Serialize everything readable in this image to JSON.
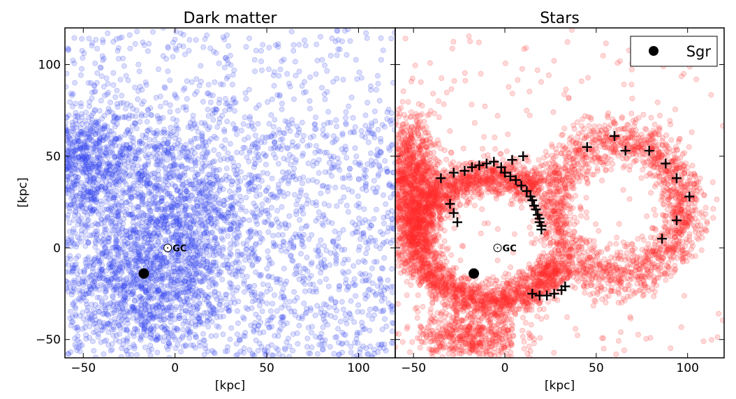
{
  "chart_data": [
    {
      "type": "scatter",
      "title": "Dark matter",
      "xlabel": "[kpc]",
      "ylabel": "[kpc]",
      "xlim": [
        -60,
        120
      ],
      "ylim": [
        -60,
        120
      ],
      "xticks": [
        -50,
        0,
        50,
        100
      ],
      "yticks": [
        -50,
        0,
        50,
        100
      ],
      "xtick_labels": [
        "−50",
        "0",
        "50",
        "100"
      ],
      "ytick_labels": [
        "−50",
        "0",
        "50",
        "100"
      ],
      "grid": false,
      "point_color": "#3344ee",
      "gc": {
        "x": -4,
        "y": 0,
        "label": "GC"
      },
      "sgr": {
        "x": -17,
        "y": -14
      },
      "points": []
    },
    {
      "type": "scatter",
      "title": "Stars",
      "xlabel": "[kpc]",
      "xlim": [
        -60,
        120
      ],
      "ylim": [
        -60,
        120
      ],
      "xticks": [
        -50,
        0,
        50,
        100
      ],
      "xtick_labels": [
        "−50",
        "0",
        "50",
        "100"
      ],
      "grid": false,
      "point_color": "#ff2a2a",
      "legend": {
        "position": "top-right",
        "entries": [
          {
            "label": "Sgr",
            "marker": "filled-circle",
            "color": "#000000"
          }
        ]
      },
      "gc": {
        "x": -4,
        "y": 0,
        "label": "GC"
      },
      "sgr": {
        "x": -17,
        "y": -14
      },
      "plus_markers": [
        {
          "x": -35,
          "y": 38
        },
        {
          "x": -28,
          "y": 41
        },
        {
          "x": -22,
          "y": 42
        },
        {
          "x": -18,
          "y": 44
        },
        {
          "x": -14,
          "y": 45
        },
        {
          "x": -10,
          "y": 46
        },
        {
          "x": -6,
          "y": 47
        },
        {
          "x": -2,
          "y": 44
        },
        {
          "x": 0,
          "y": 41
        },
        {
          "x": 3,
          "y": 39
        },
        {
          "x": 6,
          "y": 37
        },
        {
          "x": 9,
          "y": 34
        },
        {
          "x": 12,
          "y": 31
        },
        {
          "x": 14,
          "y": 28
        },
        {
          "x": 15,
          "y": 26
        },
        {
          "x": 16,
          "y": 23
        },
        {
          "x": 17,
          "y": 21
        },
        {
          "x": 18,
          "y": 18
        },
        {
          "x": 19,
          "y": 16
        },
        {
          "x": 19,
          "y": 14
        },
        {
          "x": 20,
          "y": 12
        },
        {
          "x": 20,
          "y": 10
        },
        {
          "x": 4,
          "y": 48
        },
        {
          "x": 10,
          "y": 50
        },
        {
          "x": -30,
          "y": 24
        },
        {
          "x": -28,
          "y": 19
        },
        {
          "x": -26,
          "y": 14
        },
        {
          "x": 15,
          "y": -25
        },
        {
          "x": 19,
          "y": -26
        },
        {
          "x": 23,
          "y": -26
        },
        {
          "x": 27,
          "y": -25
        },
        {
          "x": 31,
          "y": -23
        },
        {
          "x": 33,
          "y": -21
        },
        {
          "x": 45,
          "y": 55
        },
        {
          "x": 60,
          "y": 61
        },
        {
          "x": 66,
          "y": 53
        },
        {
          "x": 79,
          "y": 53
        },
        {
          "x": 88,
          "y": 46
        },
        {
          "x": 94,
          "y": 38
        },
        {
          "x": 101,
          "y": 28
        },
        {
          "x": 94,
          "y": 15
        },
        {
          "x": 86,
          "y": 5
        }
      ],
      "points": []
    }
  ]
}
